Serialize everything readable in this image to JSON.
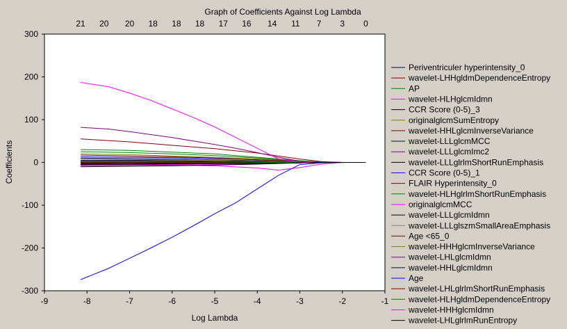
{
  "chart_data": {
    "type": "line",
    "title": "Graph of Coefficients Against Log Lambda",
    "xlabel": "Log Lambda",
    "ylabel": "Coefficients",
    "xlim": [
      -9,
      -1
    ],
    "ylim": [
      -300,
      300
    ],
    "xticks": [
      -9,
      -8,
      -7,
      -6,
      -5,
      -4,
      -3,
      -2,
      -1
    ],
    "yticks": [
      -300,
      -200,
      -100,
      0,
      100,
      200,
      300
    ],
    "top_axis": {
      "positions": [
        -8.15,
        -7.6,
        -7.0,
        -6.45,
        -5.9,
        -5.35,
        -4.8,
        -4.25,
        -3.65,
        -3.1,
        -2.55,
        -2.0,
        -1.45
      ],
      "labels": [
        "21",
        "20",
        "20",
        "18",
        "18",
        "18",
        "17",
        "16",
        "14",
        "11",
        "7",
        "3",
        "0"
      ]
    },
    "grid": false,
    "legend_position": "right",
    "series": [
      {
        "name": "Periventriculer hyperintensity_0",
        "color": "#000080",
        "x": [
          -8.15,
          -6.5,
          -5,
          -4,
          -3.5,
          -3,
          -2.5,
          -2,
          -1.45
        ],
        "y": [
          0,
          0,
          0,
          0,
          0,
          0,
          0,
          0,
          0
        ]
      },
      {
        "name": "wavelet-LHHgldmDependenceEntropy",
        "color": "#800000",
        "x": [
          -8.15,
          -6.5,
          -5,
          -4,
          -3.5,
          -3,
          -2.5,
          -2,
          -1.45
        ],
        "y": [
          0,
          0,
          0,
          0,
          0,
          0,
          0,
          0,
          0
        ]
      },
      {
        "name": "AP",
        "color": "#008000",
        "x": [
          -8.15,
          -7,
          -6,
          -5,
          -4,
          -3,
          -2.5,
          -2,
          -1.45
        ],
        "y": [
          30,
          28,
          24,
          20,
          12,
          4,
          1,
          0,
          0
        ]
      },
      {
        "name": "wavelet-HLHglcmIdmn",
        "color": "#ff00ff",
        "x": [
          -8.15,
          -7,
          -6,
          -5,
          -4,
          -3.5,
          -3,
          -2.5,
          -2,
          -1.45
        ],
        "y": [
          -3,
          -4,
          -6,
          -8,
          -13,
          -18,
          -12,
          -4,
          0,
          0
        ]
      },
      {
        "name": "CCR Score (0-5)_3",
        "color": "#000000",
        "x": [
          -8.15,
          -7,
          -6,
          -5,
          -4,
          -3,
          -2.5,
          -2,
          -1.45
        ],
        "y": [
          5,
          5,
          4,
          3,
          2,
          1,
          0,
          0,
          0
        ]
      },
      {
        "name": "originalglcmSumEntropy",
        "color": "#808000",
        "x": [
          -8.15,
          -7,
          -6,
          -5,
          -4,
          -3,
          -2.5,
          -2,
          -1.45
        ],
        "y": [
          20,
          18,
          15,
          12,
          8,
          3,
          1,
          0,
          0
        ]
      },
      {
        "name": "wavelet-HHLglcmInverseVariance",
        "color": "#800000",
        "x": [
          -8.15,
          -7,
          -6,
          -5,
          -4,
          -3,
          -2.5,
          -2,
          -1.45
        ],
        "y": [
          55,
          48,
          40,
          32,
          22,
          8,
          2,
          0,
          0
        ]
      },
      {
        "name": "wavelet-LLLglcmMCC",
        "color": "#000080",
        "x": [
          -8.15,
          -7,
          -6,
          -5,
          -4,
          -3,
          -2.5,
          -2,
          -1.45
        ],
        "y": [
          10,
          9,
          8,
          6,
          4,
          1,
          0,
          0,
          0
        ]
      },
      {
        "name": "wavelet-LLLglcmImc2",
        "color": "#800080",
        "x": [
          -8.15,
          -7.5,
          -7,
          -6.5,
          -6,
          -5.5,
          -5,
          -4.5,
          -4,
          -3.5,
          -3,
          -2.5,
          -2,
          -1.45
        ],
        "y": [
          82,
          78,
          72,
          65,
          58,
          50,
          42,
          33,
          23,
          12,
          3,
          1,
          0,
          0
        ]
      },
      {
        "name": "wavelet-LLLglrlmShortRunEmphasis",
        "color": "#000000",
        "x": [
          -8.15,
          -7,
          -6,
          -5,
          -4,
          -3,
          -2.5,
          -2,
          -1.45
        ],
        "y": [
          -2,
          -2,
          -2,
          -2,
          -1,
          -1,
          0,
          0,
          0
        ]
      },
      {
        "name": "CCR Score (0-5)_1",
        "color": "#0000ff",
        "x": [
          -8.15,
          -7,
          -6,
          -5,
          -4,
          -3,
          -2.5,
          -2,
          -1.45
        ],
        "y": [
          13,
          12,
          11,
          9,
          6,
          2,
          0,
          0,
          0
        ]
      },
      {
        "name": "FLAIR Hyperintensity_0",
        "color": "#800000",
        "x": [
          -8.15,
          -7,
          -6,
          -5,
          -4,
          -3,
          -2.5,
          -2,
          -1.45
        ],
        "y": [
          -5,
          -5,
          -4,
          -3,
          -2,
          -1,
          0,
          0,
          0
        ]
      },
      {
        "name": "wavelet-HLHglrlmShortRunEmphasis",
        "color": "#008000",
        "x": [
          -8.15,
          -7,
          -6,
          -5,
          -4,
          -3,
          -2.5,
          -2,
          -1.45
        ],
        "y": [
          25,
          23,
          20,
          16,
          10,
          3,
          1,
          0,
          0
        ]
      },
      {
        "name": "originalglcmMCC",
        "color": "#ff00ff",
        "x": [
          -8.15,
          -7,
          -6,
          -5,
          -4,
          -3,
          -2.5,
          -2,
          -1.45
        ],
        "y": [
          -8,
          -7,
          -6,
          -5,
          -3,
          -1,
          0,
          0,
          0
        ]
      },
      {
        "name": "wavelet-LLLglcmIdmn",
        "color": "#000000",
        "x": [
          -8.15,
          -7,
          -6,
          -5,
          -4,
          -3,
          -2.5,
          -2,
          -1.45
        ],
        "y": [
          -10,
          -9,
          -8,
          -6,
          -4,
          -1,
          0,
          0,
          0
        ]
      },
      {
        "name": "wavelet-LLLglszmSmallAreaEmphasis",
        "color": "#808080",
        "x": [
          -8.15,
          -7,
          -6,
          -5,
          -4,
          -3,
          -2.5,
          -2,
          -1.45
        ],
        "y": [
          2,
          2,
          2,
          1,
          1,
          0,
          0,
          0,
          0
        ]
      },
      {
        "name": "Age <65_0",
        "color": "#800000",
        "x": [
          -8.15,
          -7,
          -6,
          -5,
          -4,
          -3,
          -2.5,
          -2,
          -1.45
        ],
        "y": [
          17,
          15,
          13,
          10,
          6,
          2,
          0,
          0,
          0
        ]
      },
      {
        "name": "wavelet-HHHglcmInverseVariance",
        "color": "#808000",
        "x": [
          -8.15,
          -7,
          -6,
          -5,
          -4,
          -3,
          -2.5,
          -2,
          -1.45
        ],
        "y": [
          8,
          7,
          6,
          5,
          3,
          1,
          0,
          0,
          0
        ]
      },
      {
        "name": "wavelet-LHLglcmIdmn",
        "color": "#800080",
        "x": [
          -8.15,
          -7,
          -6,
          -5,
          -4,
          -3,
          -2.5,
          -2,
          -1.45
        ],
        "y": [
          -6,
          -5,
          -4,
          -3,
          -2,
          -1,
          0,
          0,
          0
        ]
      },
      {
        "name": "wavelet-HHLglcmIdmn",
        "color": "#000080",
        "x": [
          -8.15,
          -7,
          -6,
          -5,
          -4,
          -3,
          -2.5,
          -2,
          -1.45
        ],
        "y": [
          3,
          3,
          2,
          2,
          1,
          0,
          0,
          0,
          0
        ]
      },
      {
        "name": "Age",
        "color": "#0000ff",
        "x": [
          -8.15,
          -7.5,
          -7,
          -6.5,
          -6,
          -5.5,
          -5,
          -4.5,
          -4,
          -3.5,
          -3,
          -2.5,
          -2,
          -1.45
        ],
        "y": [
          -274,
          -248,
          -224,
          -200,
          -175,
          -148,
          -120,
          -94,
          -62,
          -30,
          -5,
          -1,
          0,
          0
        ]
      },
      {
        "name": "wavelet-LHLglrlmShortRunEmphasis",
        "color": "#800000",
        "x": [
          -8.15,
          -7,
          -6,
          -5,
          -4,
          -3,
          -2.5,
          -2,
          -1.45
        ],
        "y": [
          -1,
          -1,
          -1,
          -1,
          0,
          0,
          0,
          0,
          0
        ]
      },
      {
        "name": "wavelet-HLHgldmDependenceEntropy",
        "color": "#008000",
        "x": [
          -8.15,
          -7,
          -6,
          -5,
          -4,
          -3,
          -2.5,
          -2,
          -1.45
        ],
        "y": [
          1,
          1,
          1,
          1,
          0,
          0,
          0,
          0,
          0
        ]
      },
      {
        "name": "wavelet-HHHglcmIdmn",
        "color": "#ff00ff",
        "x": [
          -8.15,
          -7.5,
          -7,
          -6.5,
          -6,
          -5.5,
          -5,
          -4.5,
          -4,
          -3.5,
          -3,
          -2.5,
          -2,
          -1.45
        ],
        "y": [
          187,
          177,
          162,
          145,
          125,
          105,
          83,
          58,
          33,
          8,
          1,
          0,
          0,
          0
        ]
      },
      {
        "name": "wavelet-LHLglrlmRunEntropy",
        "color": "#000000",
        "x": [
          -8.15,
          -7,
          -6,
          -5,
          -4,
          -3,
          -2.5,
          -2,
          -1.45
        ],
        "y": [
          -4,
          -4,
          -3,
          -2,
          -2,
          -1,
          0,
          0,
          0
        ]
      }
    ]
  }
}
